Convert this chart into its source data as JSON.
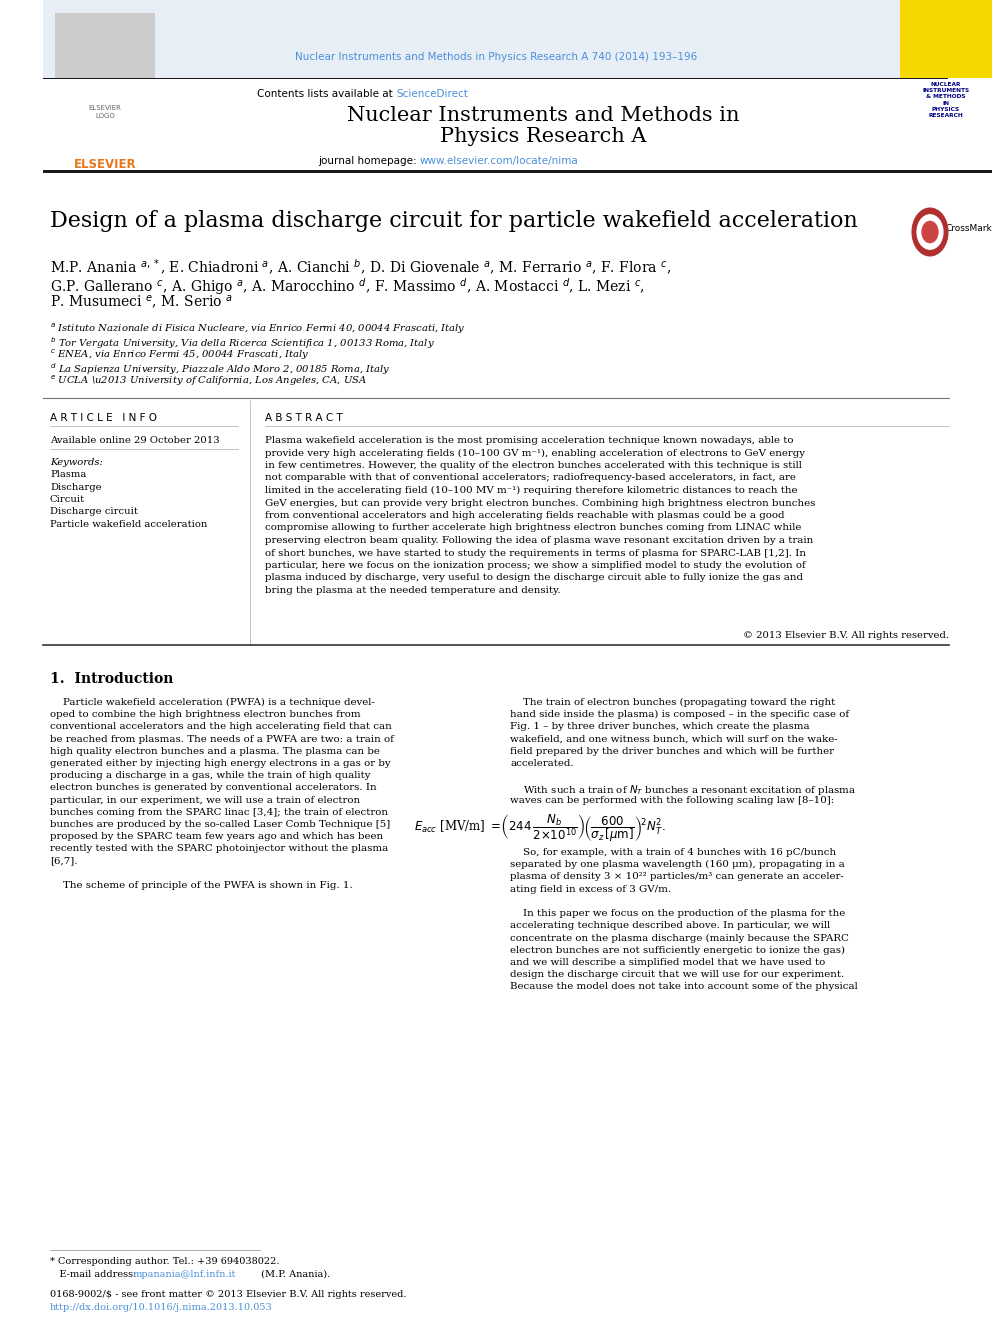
{
  "page_width": 9.92,
  "page_height": 13.23,
  "bg_color": "#ffffff",
  "header_citation": "Nuclear Instruments and Methods in Physics Research A 740 (2014) 193–196",
  "header_citation_color": "#4a90d9",
  "journal_header_bg": "#e8eef5",
  "sciencedirect_color": "#4a90d9",
  "journal_homepage_url_color": "#4a90d9",
  "top_black_bar_color": "#1a1a1a",
  "paper_title": "Design of a plasma discharge circuit for particle wakefield acceleration",
  "available_online": "Available online 29 October 2013",
  "keywords_label": "Keywords:",
  "keywords": [
    "Plasma",
    "Discharge",
    "Circuit",
    "Discharge circuit",
    "Particle wakefield acceleration"
  ],
  "abstract_text": "Plasma wakefield acceleration is the most promising acceleration technique known nowadays, able to provide very high accelerating fields (10–100 GV m⁻¹), enabling acceleration of electrons to GeV energy in few centimetres. However, the quality of the electron bunches accelerated with this technique is still not comparable with that of conventional accelerators; radiofrequency-based accelerators, in fact, are limited in the accelerating field (10–100 MV m⁻¹) requiring therefore kilometric distances to reach the GeV energies, but can provide very bright electron bunches. Combining high brightness electron bunches from conventional accelerators and high accelerating fields reachable with plasmas could be a good compromise allowing to further accelerate high brightness electron bunches coming from LINAC while preserving electron beam quality. Following the idea of plasma wave resonant excitation driven by a train of short bunches, we have started to study the requirements in terms of plasma for SPARC-LAB [1,2]. In particular, here we focus on the ionization process; we show a simplified model to study the evolution of plasma induced by discharge, very useful to design the discharge circuit able to fully ionize the gas and bring the plasma at the needed temperature and density.",
  "copyright_line": "© 2013 Elsevier B.V. All rights reserved.",
  "section1_title": "1.  Introduction",
  "intro_left": "Particle wakefield acceleration (PWFA) is a technique developed to combine the high brightness electron bunches from conventional accelerators and the high accelerating field that can be reached from plasmas. The needs of a PWFA are two: a train of high quality electron bunches and a plasma. The plasma can be generated either by injecting high energy electrons in a gas or by producing a discharge in a gas, while the train of high quality electron bunches is generated by conventional accelerators. In particular, in our experiment, we will use a train of electron bunches coming from the SPARC linac [3,4]; the train of electron bunches are produced by the so-called Laser Comb Technique [5] proposed by the SPARC team few years ago and which has been recently tested with the SPARC photoinjector without the plasma [6,7].\n\nThe scheme of principle of the PWFA is shown in Fig. 1.",
  "intro_right_1": "The train of electron bunches (propagating toward the right hand side inside the plasma) is composed – in the specific case of Fig. 1 – by three driver bunches, which create the plasma wakefield, and one witness bunch, which will surf on the wakefield prepared by the driver bunches and which will be further accelerated.",
  "intro_right_2": "With such a train of $N_T$ bunches a resonant excitation of plasma waves can be performed with the following scaling law [8–10]:",
  "intro_right_3": "So, for example, with a train of 4 bunches with 16 pC/bunch separated by one plasma wavelength (160 μm), propagating in a plasma of density 3 × 10²² particles/m³ can generate an accelerating field in excess of 3 GV/m.\n\nIn this paper we focus on the production of the plasma for the accelerating technique described above. In particular, we will concentrate on the plasma discharge (mainly because the SPARC electron bunches are not sufficiently energetic to ionize the gas) and we will describe a simplified model that we have used to design the discharge circuit that we will use for our experiment. Because the model does not take into account some of the physical",
  "footnote_star": "* Corresponding author. Tel.: +39 694038022.",
  "footnote_issn": "0168-9002/$ - see front matter © 2013 Elsevier B.V. All rights reserved.",
  "footnote_doi": "http://dx.doi.org/10.1016/j.nima.2013.10.053",
  "link_color": "#4a90d9",
  "text_color": "#000000"
}
